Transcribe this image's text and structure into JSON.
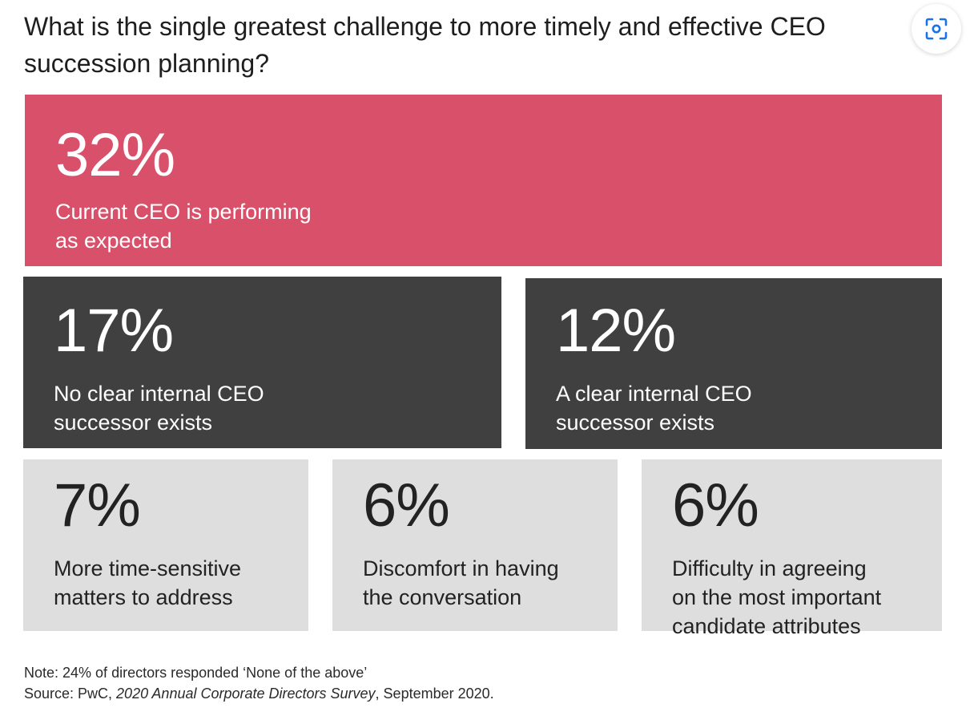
{
  "title": "What is the single greatest challenge to more timely and effective CEO succession planning?",
  "lens_button": {
    "icon": "visual-search-icon"
  },
  "chart_data": {
    "type": "table",
    "title": "What is the single greatest challenge to more timely and effective CEO succession planning?",
    "unit": "%",
    "items": [
      {
        "value": 32,
        "value_label": "32%",
        "label": "Current CEO is performing\nas expected",
        "color": "#d9506a"
      },
      {
        "value": 17,
        "value_label": "17%",
        "label": "No clear internal CEO\nsuccessor exists",
        "color": "#404040"
      },
      {
        "value": 12,
        "value_label": "12%",
        "label": "A clear internal CEO\nsuccessor exists",
        "color": "#404040"
      },
      {
        "value": 7,
        "value_label": "7%",
        "label": "More time-sensitive\nmatters to address",
        "color": "#dedede"
      },
      {
        "value": 6,
        "value_label": "6%",
        "label": "Discomfort in having\nthe conversation",
        "color": "#dedede"
      },
      {
        "value": 6,
        "value_label": "6%",
        "label": "Difficulty in agreeing\non the most important\ncandidate attributes",
        "color": "#dedede"
      }
    ]
  },
  "footnote": {
    "note": "Note: 24% of directors responded ‘None of the above’",
    "source_prefix": "Source: PwC, ",
    "source_title": "2020 Annual Corporate Directors Survey",
    "source_suffix": ", September 2020."
  }
}
